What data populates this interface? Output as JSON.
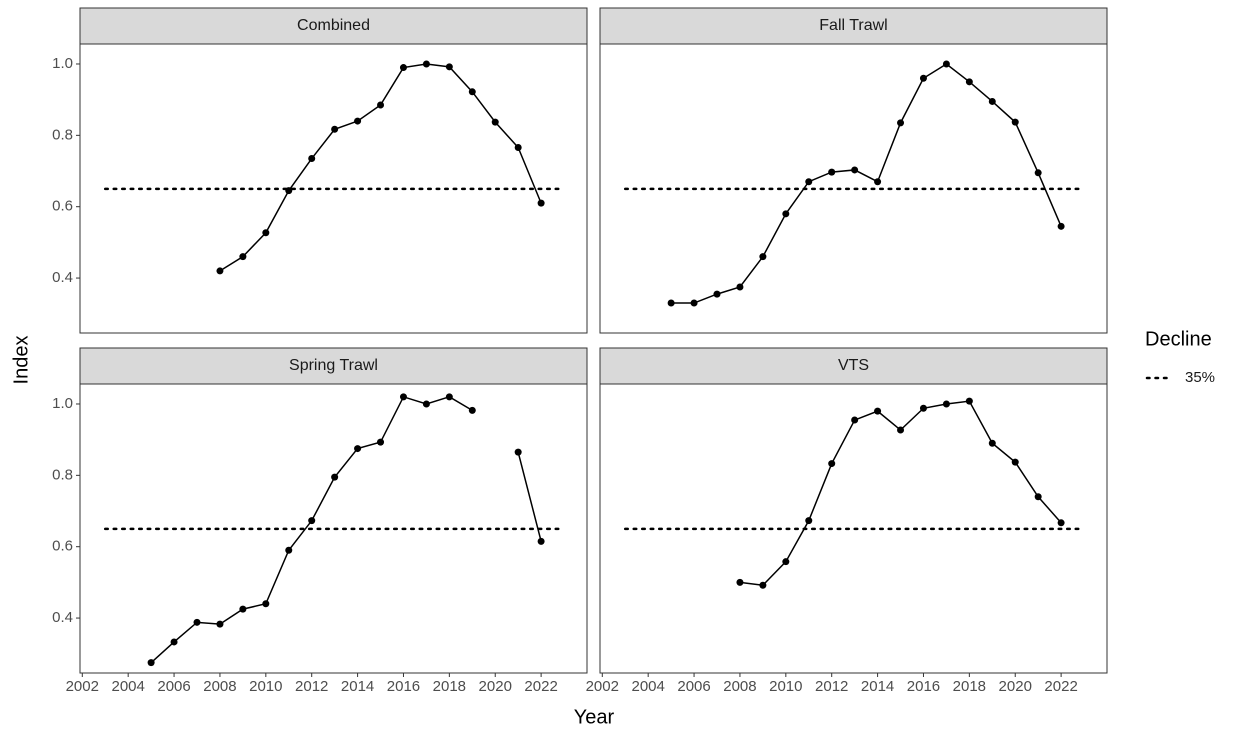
{
  "x_label": "Year",
  "y_label": "Index",
  "xlim": [
    2001.9,
    2024
  ],
  "ylim": [
    0.246,
    1.056
  ],
  "xticks": [
    2002,
    2004,
    2006,
    2008,
    2010,
    2012,
    2014,
    2016,
    2018,
    2020,
    2022
  ],
  "yticks": [
    0.4,
    0.6,
    0.8,
    {
      "value": 1,
      "label": "1.0"
    }
  ],
  "legend": {
    "title": "Decline",
    "label": "35%"
  },
  "chart_data": [
    {
      "type": "line",
      "title": "Combined",
      "color": "#000000",
      "x": [
        2008,
        2009,
        2010,
        2011,
        2012,
        2013,
        2014,
        2015,
        2016,
        2017,
        2018,
        2019,
        2020,
        2021,
        2022
      ],
      "values": [
        0.42,
        0.46,
        0.527,
        0.645,
        0.735,
        0.817,
        0.84,
        0.885,
        0.99,
        1.0,
        0.992,
        0.922,
        0.837,
        0.766,
        0.61
      ],
      "hline": {
        "value": 0.65,
        "x": [
          2003,
          2023
        ]
      }
    },
    {
      "type": "line",
      "title": "Fall Trawl",
      "color": "#000000",
      "x": [
        2005,
        2006,
        2007,
        2008,
        2009,
        2010,
        2011,
        2012,
        2013,
        2014,
        2015,
        2016,
        2017,
        2018,
        2019,
        2020,
        2021,
        2022
      ],
      "values": [
        0.33,
        0.33,
        0.355,
        0.375,
        0.46,
        0.58,
        0.67,
        0.697,
        0.703,
        0.67,
        0.835,
        0.96,
        1.0,
        0.95,
        0.895,
        0.837,
        0.695,
        0.545
      ],
      "hline": {
        "value": 0.65,
        "x": [
          2003,
          2023
        ]
      }
    },
    {
      "type": "line",
      "title": "Spring Trawl",
      "color": "#000000",
      "x": [
        2005,
        2006,
        2007,
        2008,
        2009,
        2010,
        2011,
        2012,
        2013,
        2014,
        2015,
        2016,
        2017,
        2018,
        2019,
        2020,
        2021,
        2022
      ],
      "values": [
        0.275,
        0.333,
        0.388,
        0.383,
        0.425,
        0.44,
        0.59,
        0.673,
        0.795,
        0.875,
        0.893,
        1.02,
        1.0,
        1.02,
        0.982,
        null,
        0.865,
        0.615
      ],
      "hline": {
        "value": 0.65,
        "x": [
          2003,
          2023
        ]
      }
    },
    {
      "type": "line",
      "title": "VTS",
      "color": "#000000",
      "x": [
        2008,
        2009,
        2010,
        2011,
        2012,
        2013,
        2014,
        2015,
        2016,
        2017,
        2018,
        2019,
        2020,
        2021,
        2022
      ],
      "values": [
        0.5,
        0.492,
        0.558,
        0.673,
        0.833,
        0.955,
        0.98,
        0.927,
        0.988,
        1.0,
        1.008,
        0.89,
        0.837,
        0.74,
        0.667
      ],
      "hline": {
        "value": 0.65,
        "x": [
          2003,
          2023
        ]
      }
    }
  ]
}
